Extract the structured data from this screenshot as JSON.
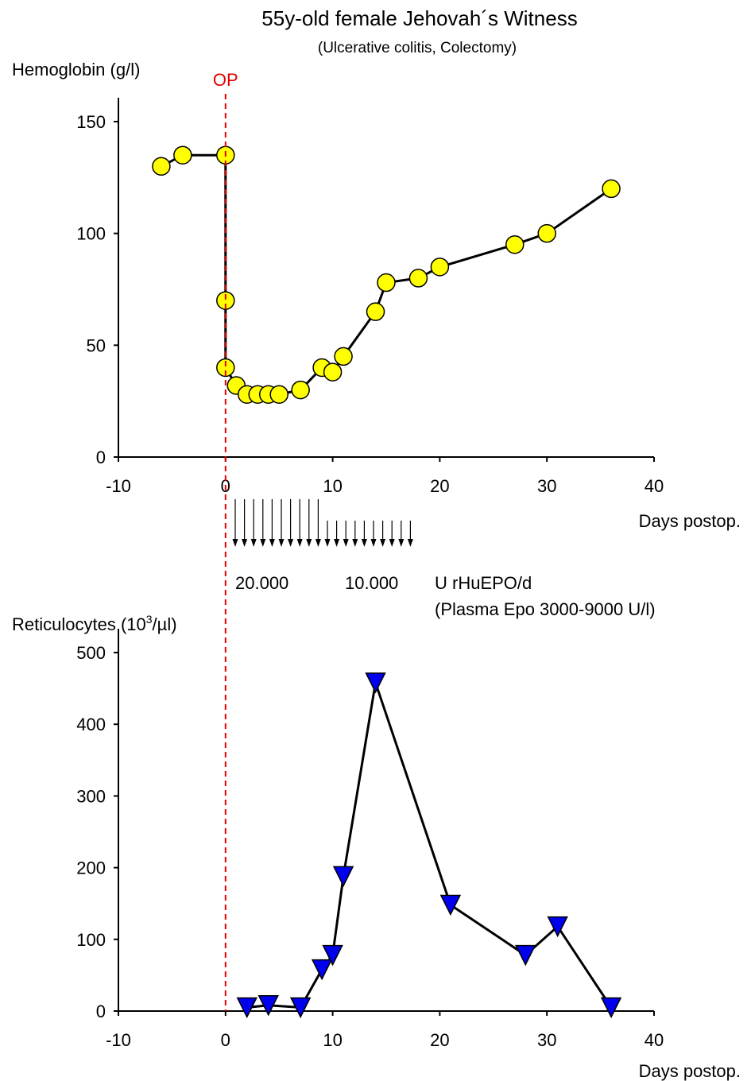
{
  "figure": {
    "title": "55y-old female Jehovah´s Witness",
    "subtitle": "(Ulcerative colitis, Colectomy)",
    "op_label": "OP",
    "op_day": 0
  },
  "epo": {
    "dose_high_label": "20.000",
    "dose_low_label": "10.000",
    "unit_label": "U  rHuEPO/d",
    "plasma_label": "(Plasma Epo 3000-9000 U/l)",
    "high_dose_days": 10,
    "low_dose_days": 10
  },
  "chart_data": [
    {
      "type": "line",
      "ylabel": "Hemoglobin (g/l)",
      "xlabel": "Days postop.",
      "xlim": [
        -10,
        40
      ],
      "ylim": [
        0,
        160
      ],
      "xticks": [
        -10,
        0,
        10,
        20,
        30,
        40
      ],
      "yticks": [
        0,
        50,
        100,
        150
      ],
      "marker": "circle",
      "marker_color": "#ffff00",
      "series": [
        {
          "x": [
            -6,
            -4,
            0,
            0,
            0,
            1,
            2,
            3,
            4,
            5,
            7,
            9,
            10,
            11,
            14,
            15,
            18,
            20,
            27,
            30,
            36
          ],
          "y": [
            130,
            135,
            135,
            70,
            40,
            32,
            28,
            28,
            28,
            28,
            30,
            40,
            38,
            45,
            65,
            78,
            80,
            85,
            95,
            100,
            120
          ]
        }
      ]
    },
    {
      "type": "line",
      "ylabel_main": "Reticulocytes (10",
      "ylabel_sup": "3",
      "ylabel_tail": "/µl)",
      "xlabel": "Days postop.",
      "xlim": [
        -10,
        40
      ],
      "ylim": [
        0,
        500
      ],
      "xticks": [
        -10,
        0,
        10,
        20,
        30,
        40
      ],
      "yticks": [
        0,
        100,
        200,
        300,
        400,
        500
      ],
      "marker": "triangle-down",
      "marker_color": "#0000ee",
      "series": [
        {
          "x": [
            2,
            4,
            7,
            9,
            10,
            11,
            14,
            21,
            28,
            31,
            36
          ],
          "y": [
            5,
            8,
            5,
            58,
            78,
            188,
            458,
            148,
            78,
            118,
            5
          ]
        }
      ]
    }
  ]
}
